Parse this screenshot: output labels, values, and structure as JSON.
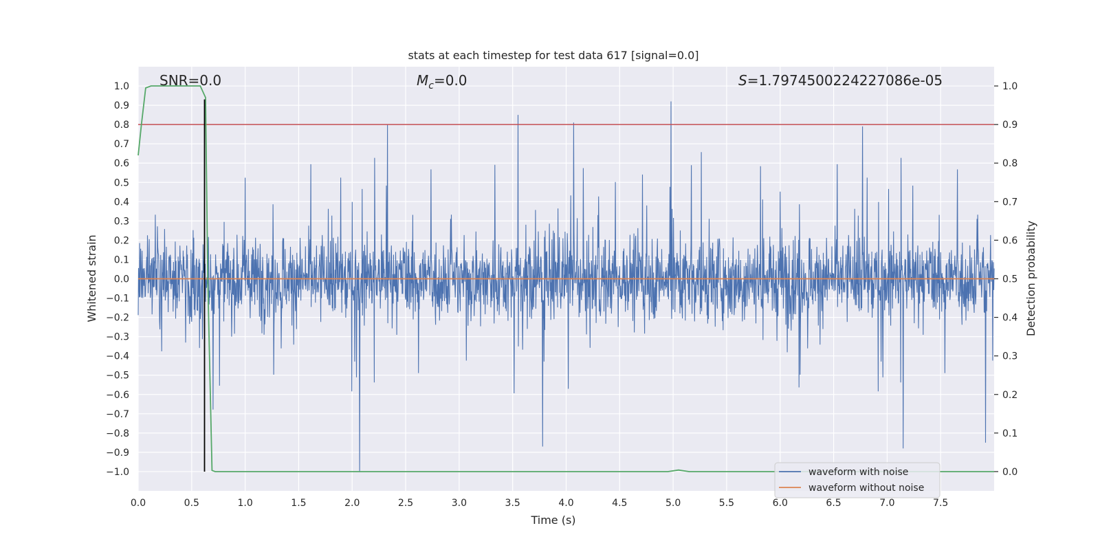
{
  "chart_data": {
    "type": "line",
    "title": "stats at each timestep for test data 617 [signal=0.0]",
    "xlabel": "Time (s)",
    "ylabel": "Whitened strain",
    "ylabel_right": "Detection probability",
    "xlim": [
      0.0,
      8.0
    ],
    "ylim": [
      -1.1,
      1.1
    ],
    "ylim_right": [
      -0.05,
      1.05
    ],
    "x_ticks": [
      0.0,
      0.5,
      1.0,
      1.5,
      2.0,
      2.5,
      3.0,
      3.5,
      4.0,
      4.5,
      5.0,
      5.5,
      6.0,
      6.5,
      7.0,
      7.5
    ],
    "x_tick_labels": [
      "0.0",
      "0.5",
      "1.0",
      "1.5",
      "2.0",
      "2.5",
      "3.0",
      "3.5",
      "4.0",
      "4.5",
      "5.0",
      "5.5",
      "6.0",
      "6.5",
      "7.0",
      "7.5"
    ],
    "y_ticks": [
      -1.0,
      -0.9,
      -0.8,
      -0.7,
      -0.6,
      -0.5,
      -0.4,
      -0.3,
      -0.2,
      -0.1,
      0.0,
      0.1,
      0.2,
      0.3,
      0.4,
      0.5,
      0.6,
      0.7,
      0.8,
      0.9,
      1.0
    ],
    "y_tick_labels": [
      "−1.0",
      "−0.9",
      "−0.8",
      "−0.7",
      "−0.6",
      "−0.5",
      "−0.4",
      "−0.3",
      "−0.2",
      "−0.1",
      "0.0",
      "0.1",
      "0.2",
      "0.3",
      "0.4",
      "0.5",
      "0.6",
      "0.7",
      "0.8",
      "0.9",
      "1.0"
    ],
    "y_right_ticks": [
      0.0,
      0.1,
      0.2,
      0.3,
      0.4,
      0.5,
      0.6,
      0.7,
      0.8,
      0.9,
      1.0
    ],
    "y_right_tick_labels": [
      "0.0",
      "0.1",
      "0.2",
      "0.3",
      "0.4",
      "0.5",
      "0.6",
      "0.7",
      "0.8",
      "0.9",
      "1.0"
    ],
    "grid": true,
    "legend_position": "lower-right",
    "annotations": {
      "snr": "SNR=0.0",
      "mc_symbol": "M",
      "mc_subscript": "c",
      "mc_value": "=0.0",
      "s_symbol": "S",
      "s_value": "=1.7974500224227086e-05"
    },
    "series": [
      {
        "name": "waveform with noise",
        "color": "#4c72b0",
        "description_values": "dense noise; peaks up to 0.92 near t=4.98, minimum -1.0 near t=2.07",
        "noise_envelope": [
          -0.4,
          0.4
        ],
        "highlighted_peaks": [
          {
            "x": 4.98,
            "y": 0.92
          },
          {
            "x": 3.55,
            "y": 0.85
          },
          {
            "x": 2.33,
            "y": 0.8
          },
          {
            "x": 4.07,
            "y": 0.81
          },
          {
            "x": 6.77,
            "y": 0.79
          },
          {
            "x": 2.07,
            "y": -1.0
          },
          {
            "x": 7.15,
            "y": -0.88
          },
          {
            "x": 3.78,
            "y": -0.87
          },
          {
            "x": 7.92,
            "y": -0.85
          }
        ]
      },
      {
        "name": "waveform without noise",
        "color": "#dd8452",
        "x": [
          0.0,
          8.0
        ],
        "y": [
          0.0,
          0.0
        ]
      },
      {
        "name": "",
        "axis": "right",
        "color": "#55a868",
        "x": [
          0.0,
          0.03,
          0.07,
          0.12,
          0.2,
          0.3,
          0.4,
          0.5,
          0.58,
          0.63,
          0.65,
          0.69,
          0.72,
          0.75,
          1.0,
          2.0,
          3.0,
          4.0,
          4.95,
          5.05,
          5.15,
          6.0,
          7.0,
          8.0
        ],
        "y": [
          0.82,
          0.9,
          0.995,
          1.0,
          1.0,
          1.0,
          1.0,
          1.0,
          1.0,
          0.97,
          0.5,
          0.003,
          0.0,
          0.0,
          0.0,
          0.0,
          0.0,
          0.0,
          0.0,
          0.004,
          0.0,
          0.0,
          0.0,
          0.0
        ]
      }
    ],
    "threshold_line": {
      "axis": "right",
      "y": 0.9,
      "color": "#c44e52"
    },
    "vertical_marker": {
      "x": 0.62,
      "y_range": [
        -1.0,
        0.93
      ],
      "color": "#000000"
    },
    "legend": [
      {
        "label": "waveform with noise",
        "color": "#4c72b0"
      },
      {
        "label": "waveform without noise",
        "color": "#dd8452"
      }
    ]
  }
}
